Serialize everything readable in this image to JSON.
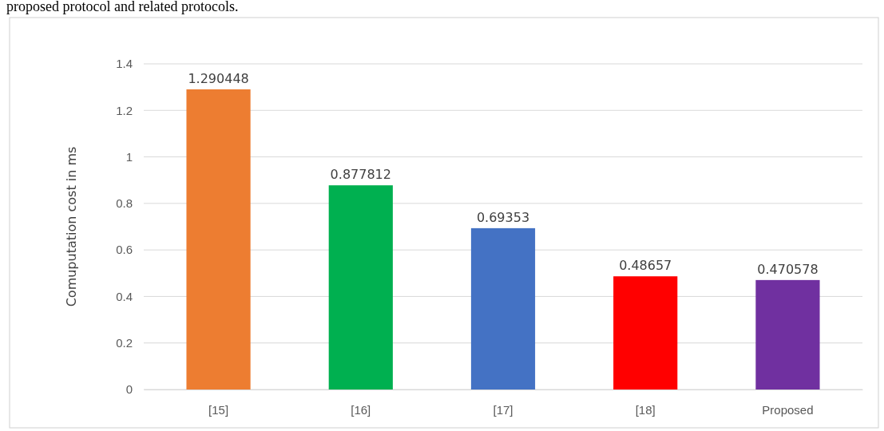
{
  "chart_data": {
    "type": "bar",
    "ylabel": "Comuputation cost in ms",
    "annotations": [
      "proposed protocol and related protocols."
    ],
    "categories": [
      "[15]",
      "[16]",
      "[17]",
      "[18]",
      "Proposed"
    ],
    "values": [
      1.290448,
      0.877812,
      0.69353,
      0.48657,
      0.470578
    ],
    "colors": [
      "#ed7d31",
      "#00b050",
      "#4472c4",
      "#ff0000",
      "#7030a0"
    ],
    "ylim": [
      0,
      1.4
    ],
    "yticks": [
      0,
      0.2,
      0.4,
      0.6,
      0.8,
      1,
      1.2,
      1.4
    ],
    "grid": "y",
    "data_labels": true
  }
}
